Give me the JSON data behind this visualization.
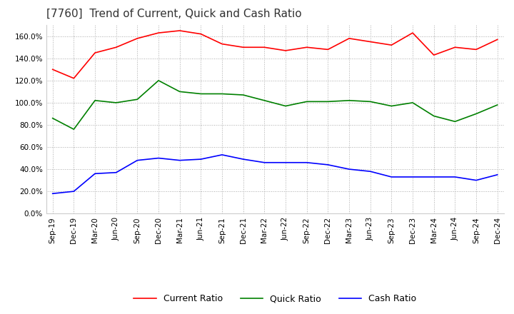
{
  "title": "[7760]  Trend of Current, Quick and Cash Ratio",
  "x_labels": [
    "Sep-19",
    "Dec-19",
    "Mar-20",
    "Jun-20",
    "Sep-20",
    "Dec-20",
    "Mar-21",
    "Jun-21",
    "Sep-21",
    "Dec-21",
    "Mar-22",
    "Jun-22",
    "Sep-22",
    "Dec-22",
    "Mar-23",
    "Jun-23",
    "Sep-23",
    "Dec-23",
    "Mar-24",
    "Jun-24",
    "Sep-24",
    "Dec-24"
  ],
  "current_ratio": [
    130,
    122,
    145,
    150,
    158,
    163,
    165,
    162,
    153,
    150,
    150,
    147,
    150,
    148,
    158,
    155,
    152,
    163,
    143,
    150,
    148,
    157
  ],
  "quick_ratio": [
    86,
    76,
    102,
    100,
    103,
    120,
    110,
    108,
    108,
    107,
    102,
    97,
    101,
    101,
    102,
    101,
    97,
    100,
    88,
    83,
    90,
    98
  ],
  "cash_ratio": [
    18,
    20,
    36,
    37,
    48,
    50,
    48,
    49,
    53,
    49,
    46,
    46,
    46,
    44,
    40,
    38,
    33,
    33,
    33,
    33,
    30,
    35
  ],
  "current_color": "#ff0000",
  "quick_color": "#008000",
  "cash_color": "#0000ff",
  "ylim": [
    0,
    170
  ],
  "yticks": [
    0,
    20,
    40,
    60,
    80,
    100,
    120,
    140,
    160
  ],
  "background_color": "#ffffff",
  "plot_bg_color": "#ffffff",
  "grid_color": "#aaaaaa",
  "title_fontsize": 11,
  "tick_fontsize": 7.5,
  "legend_fontsize": 9
}
